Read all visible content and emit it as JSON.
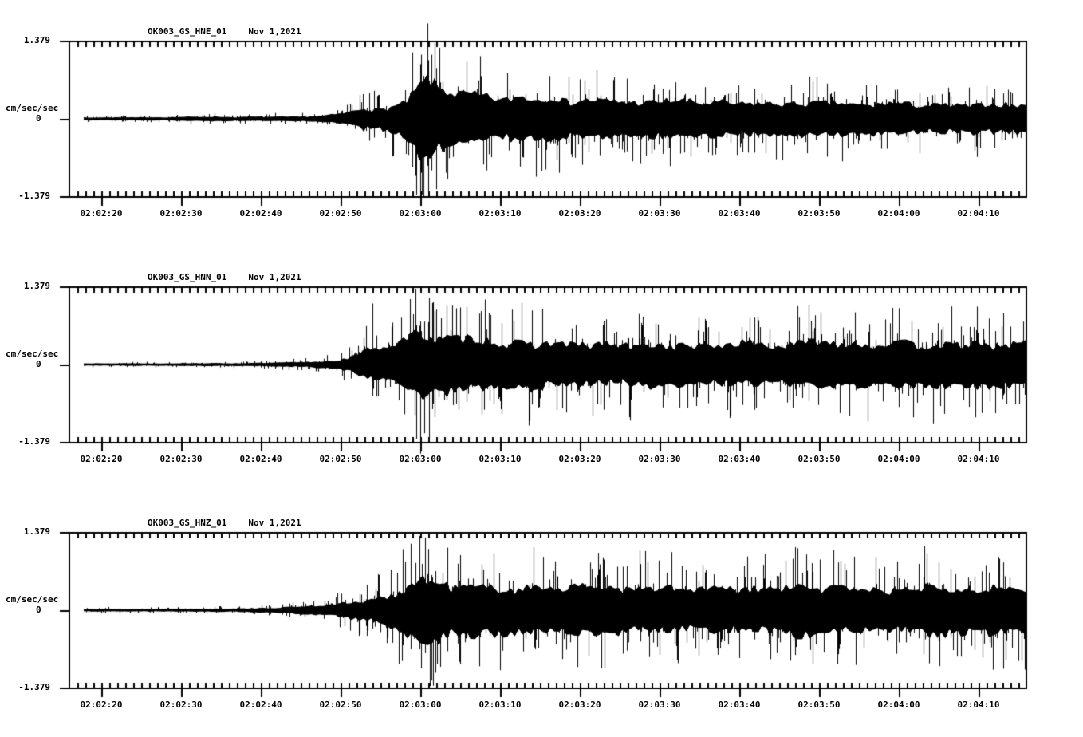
{
  "figure": {
    "background": "#ffffff",
    "ink": "#000000"
  },
  "chart_data": {
    "type": "line",
    "subtype": "seismogram-3-panel",
    "date_label": "Nov 1,2021",
    "ylabel": "cm/sec/sec",
    "ylim": [
      -1.379,
      1.379
    ],
    "full_scale": 1.379,
    "y_tick_labels": [
      "1.379",
      "0",
      "-1.379"
    ],
    "x_tick_labels": [
      "02:02:20",
      "02:02:30",
      "02:02:40",
      "02:02:50",
      "02:03:00",
      "02:03:10",
      "02:03:20",
      "02:03:30",
      "02:03:40",
      "02:03:50",
      "02:04:00",
      "02:04:10"
    ],
    "x_major_interval_seconds": 10,
    "x_minor_interval_seconds": 1,
    "x_range_rel_seconds": [
      -4.1,
      116
    ],
    "trace_start_rel_seconds": -2.2,
    "grid": false,
    "legend": false,
    "panels": [
      {
        "station": "OK003_GS_HNE_01",
        "channel": "HNE",
        "seed": 7,
        "envelope": [
          [
            -2.2,
            0.028
          ],
          [
            8,
            0.03
          ],
          [
            14,
            0.045
          ],
          [
            17,
            0.035
          ],
          [
            20,
            0.04
          ],
          [
            24,
            0.042
          ],
          [
            27,
            0.05
          ],
          [
            28.5,
            0.07
          ],
          [
            30,
            0.09
          ],
          [
            31,
            0.12
          ],
          [
            32,
            0.16
          ],
          [
            33,
            0.22
          ],
          [
            34,
            0.18
          ],
          [
            35,
            0.2
          ],
          [
            36,
            0.24
          ],
          [
            37,
            0.28
          ],
          [
            38,
            0.33
          ],
          [
            39,
            0.5
          ],
          [
            40,
            0.68
          ],
          [
            41,
            0.8
          ],
          [
            41.5,
            0.72
          ],
          [
            42,
            0.62
          ],
          [
            43,
            0.55
          ],
          [
            44,
            0.5
          ],
          [
            45,
            0.47
          ],
          [
            47,
            0.44
          ],
          [
            50,
            0.4
          ],
          [
            53,
            0.42
          ],
          [
            56,
            0.38
          ],
          [
            60,
            0.36
          ],
          [
            65,
            0.34
          ],
          [
            70,
            0.33
          ],
          [
            75,
            0.32
          ],
          [
            80,
            0.31
          ],
          [
            85,
            0.32
          ],
          [
            90,
            0.3
          ],
          [
            95,
            0.29
          ],
          [
            100,
            0.28
          ],
          [
            105,
            0.27
          ],
          [
            110,
            0.27
          ],
          [
            116,
            0.27
          ]
        ],
        "spikes": [
          [
            536,
            1.22,
            0.6
          ],
          [
            537,
            0.75,
            0.96
          ],
          [
            527,
            0.7,
            0.98
          ],
          [
            531,
            0.55,
            1.0
          ],
          [
            517,
            0.85,
            0.62
          ],
          [
            541,
            0.82,
            0.66
          ],
          [
            547,
            0.65,
            0.9
          ],
          [
            463,
            0.33,
            0.28
          ],
          [
            469,
            0.36,
            0.24
          ]
        ]
      },
      {
        "station": "OK003_GS_HNN_01",
        "channel": "HNN",
        "seed": 13,
        "envelope": [
          [
            -2.2,
            0.022
          ],
          [
            10,
            0.024
          ],
          [
            18,
            0.028
          ],
          [
            22,
            0.035
          ],
          [
            25,
            0.045
          ],
          [
            27,
            0.06
          ],
          [
            29,
            0.08
          ],
          [
            31,
            0.12
          ],
          [
            32,
            0.17
          ],
          [
            33,
            0.25
          ],
          [
            34,
            0.33
          ],
          [
            35,
            0.3
          ],
          [
            36,
            0.32
          ],
          [
            37,
            0.38
          ],
          [
            38,
            0.45
          ],
          [
            39,
            0.55
          ],
          [
            40,
            0.65
          ],
          [
            41,
            0.6
          ],
          [
            42,
            0.55
          ],
          [
            43,
            0.52
          ],
          [
            45,
            0.48
          ],
          [
            48,
            0.45
          ],
          [
            52,
            0.43
          ],
          [
            56,
            0.41
          ],
          [
            60,
            0.4
          ],
          [
            65,
            0.39
          ],
          [
            70,
            0.38
          ],
          [
            75,
            0.39
          ],
          [
            80,
            0.41
          ],
          [
            85,
            0.39
          ],
          [
            90,
            0.42
          ],
          [
            95,
            0.4
          ],
          [
            100,
            0.39
          ],
          [
            105,
            0.41
          ],
          [
            110,
            0.4
          ],
          [
            116,
            0.41
          ]
        ],
        "spikes": [
          [
            527,
            0.55,
            1.14
          ],
          [
            522,
            0.5,
            0.95
          ],
          [
            532,
            0.55,
            0.88
          ],
          [
            467,
            0.78,
            0.4
          ],
          [
            538,
            0.85,
            0.55
          ],
          [
            543,
            0.8,
            0.5
          ],
          [
            560,
            0.75,
            0.45
          ],
          [
            572,
            0.72,
            0.5
          ],
          [
            585,
            0.74,
            0.48
          ]
        ]
      },
      {
        "station": "OK003_GS_HNZ_01",
        "channel": "HNZ",
        "seed": 21,
        "envelope": [
          [
            -2.2,
            0.024
          ],
          [
            8,
            0.026
          ],
          [
            15,
            0.03
          ],
          [
            18,
            0.035
          ],
          [
            21,
            0.045
          ],
          [
            24,
            0.06
          ],
          [
            26,
            0.08
          ],
          [
            28,
            0.1
          ],
          [
            30,
            0.13
          ],
          [
            32,
            0.17
          ],
          [
            34,
            0.22
          ],
          [
            36,
            0.3
          ],
          [
            37,
            0.36
          ],
          [
            38,
            0.44
          ],
          [
            39,
            0.54
          ],
          [
            40,
            0.62
          ],
          [
            41,
            0.58
          ],
          [
            42,
            0.55
          ],
          [
            43,
            0.52
          ],
          [
            45,
            0.5
          ],
          [
            48,
            0.46
          ],
          [
            52,
            0.44
          ],
          [
            56,
            0.43
          ],
          [
            60,
            0.43
          ],
          [
            64,
            0.42
          ],
          [
            68,
            0.41
          ],
          [
            72,
            0.4
          ],
          [
            76,
            0.42
          ],
          [
            80,
            0.41
          ],
          [
            84,
            0.43
          ],
          [
            88,
            0.46
          ],
          [
            90,
            0.42
          ],
          [
            94,
            0.41
          ],
          [
            98,
            0.4
          ],
          [
            102,
            0.42
          ],
          [
            104,
            0.46
          ],
          [
            106,
            0.42
          ],
          [
            110,
            0.4
          ],
          [
            113,
            0.42
          ],
          [
            116,
            0.41
          ]
        ],
        "spikes": [
          [
            526,
            0.95,
            0.5
          ],
          [
            533,
            0.93,
            0.55
          ],
          [
            541,
            0.45,
            0.9
          ],
          [
            546,
            0.5,
            0.8
          ],
          [
            561,
            0.8,
            0.5
          ],
          [
            515,
            0.85,
            0.5
          ],
          [
            505,
            0.78,
            0.45
          ],
          [
            1162,
            0.58,
            0.35
          ],
          [
            1165,
            0.35,
            0.68
          ],
          [
            1177,
            0.61,
            0.4
          ],
          [
            1192,
            0.53,
            0.35
          ]
        ]
      }
    ]
  }
}
